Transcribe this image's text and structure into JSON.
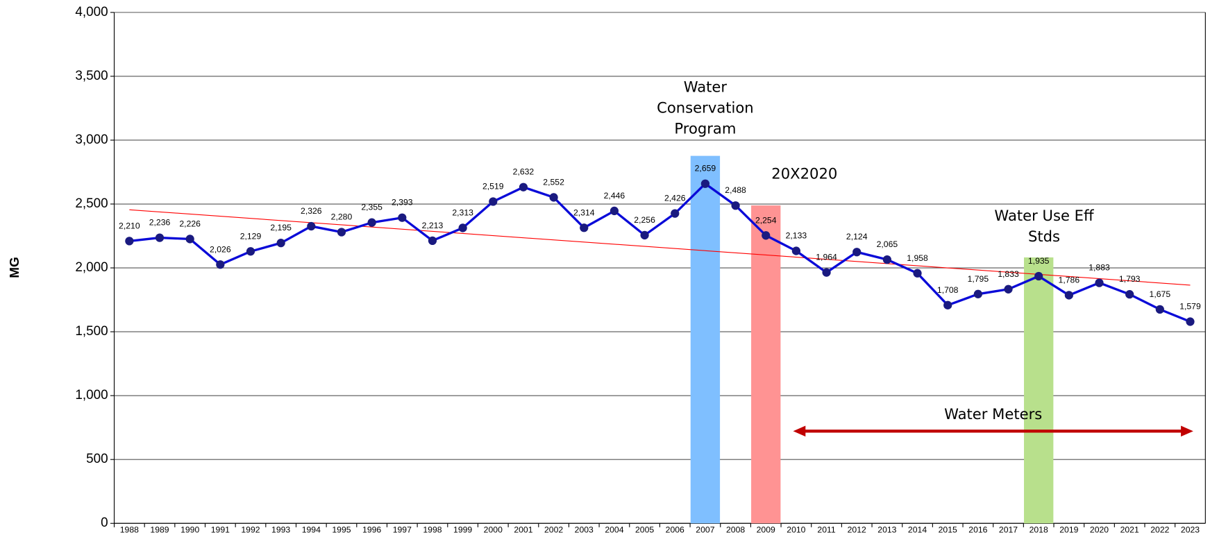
{
  "chart_data": {
    "type": "line",
    "y_label": "MG",
    "categories": [
      "1988",
      "1989",
      "1990",
      "1991",
      "1992",
      "1993",
      "1994",
      "1995",
      "1996",
      "1997",
      "1998",
      "1999",
      "2000",
      "2001",
      "2002",
      "2003",
      "2004",
      "2005",
      "2006",
      "2007",
      "2008",
      "2009",
      "2010",
      "2011",
      "2012",
      "2013",
      "2014",
      "2015",
      "2016",
      "2017",
      "2018",
      "2019",
      "2020",
      "2021",
      "2022",
      "2023"
    ],
    "series": [
      {
        "color": "#0a0ad8",
        "values": [
          2210,
          2236,
          2226,
          2026,
          2129,
          2195,
          2326,
          2280,
          2355,
          2393,
          2213,
          2313,
          2519,
          2632,
          2552,
          2314,
          2446,
          2256,
          2426,
          2659,
          2488,
          2254,
          2133,
          1964,
          2124,
          2065,
          1958,
          1708,
          1795,
          1833,
          1935,
          1786,
          1883,
          1793,
          1675,
          1579
        ],
        "value_labels": [
          "2,210",
          "2,236",
          "2,226",
          "2,026",
          "2,129",
          "2,195",
          "2,326",
          "2,280",
          "2,355",
          "2,393",
          "2,213",
          "2,313",
          "2,519",
          "2,632",
          "2,552",
          "2,314",
          "2,446",
          "2,256",
          "2,426",
          "2,659",
          "2,488",
          "2,254",
          "2,133",
          "1,964",
          "2,124",
          "2,065",
          "1,958",
          "1,708",
          "1,795",
          "1,833",
          "1,935",
          "1,786",
          "1,883",
          "1,793",
          "1,675",
          "1,579"
        ]
      }
    ],
    "trendline": {
      "color": "#ff0000",
      "values": [
        2455,
        1865
      ]
    },
    "highlights": [
      {
        "category": "2007",
        "value": 2877,
        "color": "#7fbfff",
        "lines": [
          "Water",
          "Conservation",
          "Program"
        ]
      },
      {
        "category": "2009",
        "value": 2489,
        "color": "#ff9393",
        "lines": [
          "20X2020"
        ]
      },
      {
        "category": "2018",
        "value": 2082,
        "color": "#b8e08c",
        "lines": [
          "Water Use Eff",
          "Stds"
        ]
      }
    ],
    "arrow": {
      "text": "Water Meters",
      "from": "2011",
      "to": "2022",
      "value": 722,
      "color": "#c00000"
    },
    "ylim": [
      0,
      4000
    ],
    "yticks": [
      0,
      500,
      {
        "value": 1000,
        "label": "1,000"
      },
      {
        "value": 1500,
        "label": "1,500"
      },
      {
        "value": 2000,
        "label": "2,000"
      },
      {
        "value": 2500,
        "label": "2,500"
      },
      {
        "value": 3000,
        "label": "3,000"
      },
      {
        "value": 3500,
        "label": "3,500"
      },
      {
        "value": 4000,
        "label": "4,000"
      }
    ],
    "grid": true
  }
}
